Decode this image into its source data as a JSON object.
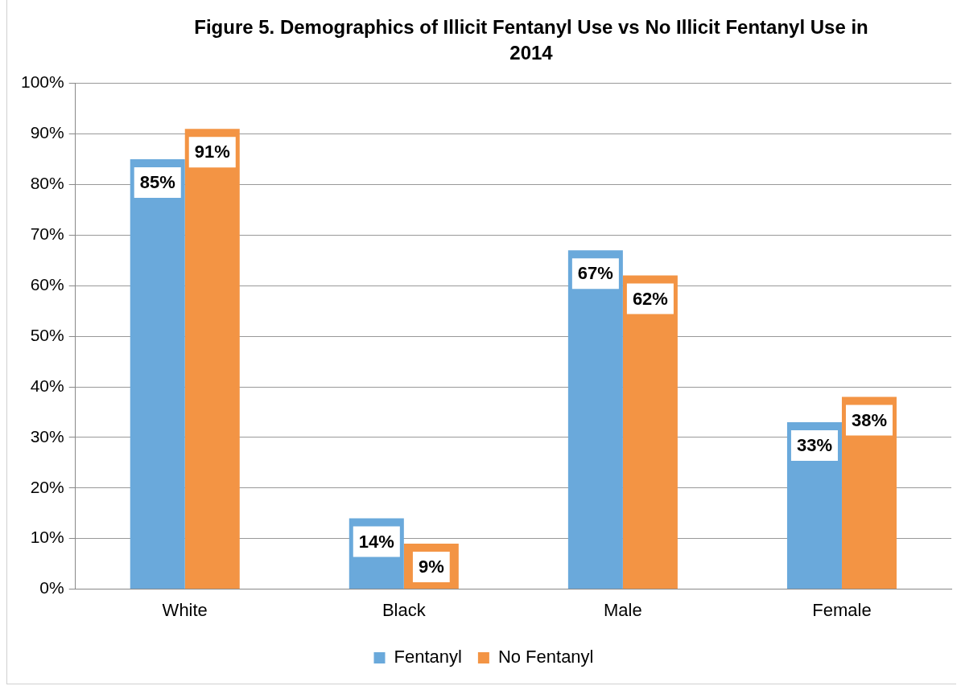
{
  "chart_data": {
    "type": "bar",
    "title": "Figure 5. Demographics of Illicit Fentanyl Use vs No Illicit Fentanyl Use in 2014",
    "categories": [
      "White",
      "Black",
      "Male",
      "Female"
    ],
    "series": [
      {
        "name": "Fentanyl",
        "color": "#6aa9db",
        "values": [
          85,
          14,
          67,
          33
        ],
        "value_labels": [
          "85%",
          "14%",
          "67%",
          "33%"
        ]
      },
      {
        "name": "No Fentanyl",
        "color": "#f39444",
        "values": [
          91,
          9,
          62,
          38
        ],
        "value_labels": [
          "91%",
          "9%",
          "62%",
          "38%"
        ]
      }
    ],
    "ylim": [
      0,
      100
    ],
    "yticks": [
      {
        "value": 0,
        "label": "0%"
      },
      {
        "value": 10,
        "label": "10%"
      },
      {
        "value": 20,
        "label": "20%"
      },
      {
        "value": 30,
        "label": "30%"
      },
      {
        "value": 40,
        "label": "40%"
      },
      {
        "value": 50,
        "label": "50%"
      },
      {
        "value": 60,
        "label": "60%"
      },
      {
        "value": 70,
        "label": "70%"
      },
      {
        "value": 80,
        "label": "80%"
      },
      {
        "value": 90,
        "label": "90%"
      },
      {
        "value": 100,
        "label": "100%"
      }
    ],
    "grid": "y",
    "legend": "bottom"
  }
}
